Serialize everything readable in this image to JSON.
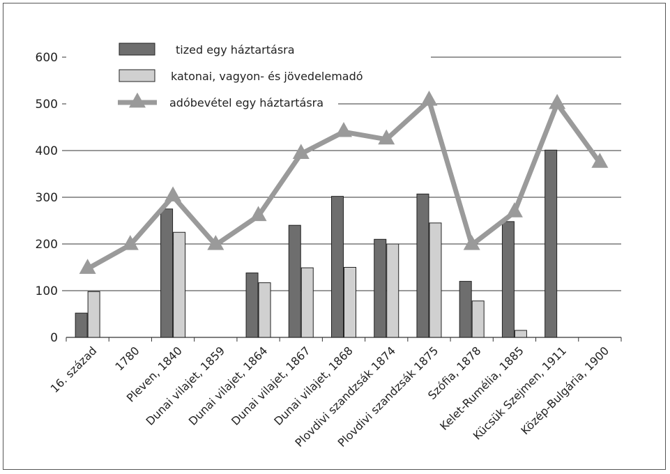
{
  "chart_data": {
    "type": "bar",
    "categories": [
      "16. század",
      "1780",
      "Pleven, 1840",
      "Dunai vilajet, 1859",
      "Dunai vilajet, 1864",
      "Dunai vilajet, 1867",
      "Dunai vilajet, 1868",
      "Plovdivi szandzsák 1874",
      "Plovdivi szandzsák 1875",
      "Szófia, 1878",
      "Kelet-Rumélia, 1885",
      "Kücsük Szejmen, 1911",
      "Közép-Bulgária, 1900"
    ],
    "series": [
      {
        "name": "tized egy háztartásra",
        "type": "bar",
        "color": "#6e6e6e",
        "values": [
          52,
          null,
          275,
          null,
          138,
          240,
          302,
          210,
          307,
          120,
          248,
          401,
          null
        ]
      },
      {
        "name": "katonai, vagyon- és jövedelemadó",
        "type": "bar",
        "color": "#d0d0d0",
        "values": [
          98,
          null,
          225,
          null,
          117,
          149,
          150,
          200,
          245,
          78,
          15,
          null,
          null
        ]
      },
      {
        "name": "adóbevétel egy háztartásra",
        "type": "line",
        "marker": "triangle",
        "color": "#9a9a9a",
        "values": [
          147,
          198,
          302,
          198,
          260,
          393,
          440,
          424,
          507,
          198,
          268,
          500,
          374
        ]
      }
    ],
    "yticks": [
      0,
      100,
      200,
      300,
      400,
      500,
      600
    ],
    "ylim": [
      0,
      600
    ],
    "grid": "horizontal",
    "legend_position": "top-left"
  }
}
